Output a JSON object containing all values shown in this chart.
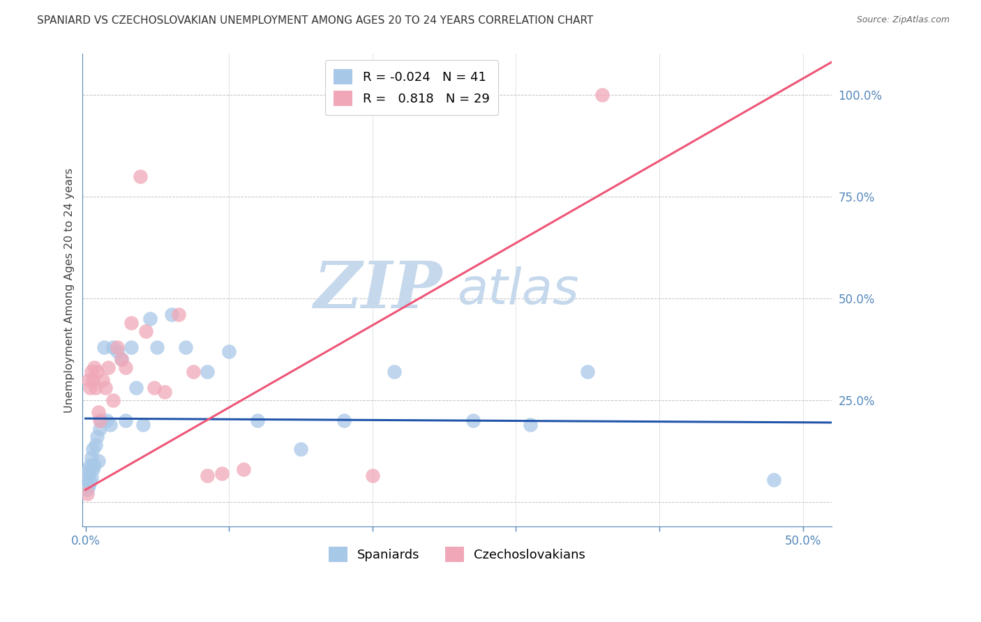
{
  "title": "SPANIARD VS CZECHOSLOVAKIAN UNEMPLOYMENT AMONG AGES 20 TO 24 YEARS CORRELATION CHART",
  "source": "Source: ZipAtlas.com",
  "ylabel": "Unemployment Among Ages 20 to 24 years",
  "xlim": [
    -0.002,
    0.52
  ],
  "ylim": [
    -0.06,
    1.1
  ],
  "yticks": [
    0.0,
    0.25,
    0.5,
    0.75,
    1.0
  ],
  "ytick_labels": [
    "",
    "25.0%",
    "50.0%",
    "75.0%",
    "100.0%"
  ],
  "xticks": [
    0.0,
    0.1,
    0.2,
    0.3,
    0.4,
    0.5
  ],
  "xtick_labels": [
    "0.0%",
    "",
    "",
    "",
    "",
    "50.0%"
  ],
  "title_color": "#333333",
  "source_color": "#666666",
  "axis_color": "#5588bb",
  "tick_color": "#5588bb",
  "grid_color": "#bbbbbb",
  "watermark_ZIP_color": "#c5d8ec",
  "watermark_atlas_color": "#c5d8ec",
  "spaniards_color": "#a8c8e8",
  "czechoslovakians_color": "#f0a8b8",
  "spaniards_line_color": "#2255aa",
  "czechoslovakians_line_color": "#ee5577",
  "legend_R_spaniards": "-0.024",
  "legend_N_spaniards": "41",
  "legend_R_czechoslovakians": "0.818",
  "legend_N_czechoslovakians": "29",
  "spaniards_x": [
    0.001,
    0.001,
    0.002,
    0.002,
    0.002,
    0.003,
    0.003,
    0.004,
    0.004,
    0.005,
    0.005,
    0.006,
    0.007,
    0.008,
    0.009,
    0.01,
    0.011,
    0.013,
    0.015,
    0.017,
    0.019,
    0.022,
    0.025,
    0.028,
    0.032,
    0.035,
    0.04,
    0.045,
    0.05,
    0.06,
    0.07,
    0.085,
    0.1,
    0.12,
    0.15,
    0.18,
    0.215,
    0.27,
    0.31,
    0.35,
    0.48
  ],
  "spaniards_y": [
    0.03,
    0.06,
    0.04,
    0.07,
    0.08,
    0.05,
    0.09,
    0.06,
    0.11,
    0.08,
    0.13,
    0.09,
    0.14,
    0.16,
    0.1,
    0.18,
    0.2,
    0.38,
    0.2,
    0.19,
    0.38,
    0.37,
    0.35,
    0.2,
    0.38,
    0.28,
    0.19,
    0.45,
    0.38,
    0.46,
    0.38,
    0.32,
    0.37,
    0.2,
    0.13,
    0.2,
    0.32,
    0.2,
    0.19,
    0.32,
    0.055
  ],
  "czechoslovakians_x": [
    0.001,
    0.002,
    0.003,
    0.004,
    0.005,
    0.006,
    0.007,
    0.008,
    0.009,
    0.01,
    0.012,
    0.014,
    0.016,
    0.019,
    0.022,
    0.025,
    0.028,
    0.032,
    0.038,
    0.042,
    0.048,
    0.055,
    0.065,
    0.075,
    0.085,
    0.095,
    0.11,
    0.2,
    0.36
  ],
  "czechoslovakians_y": [
    0.02,
    0.3,
    0.28,
    0.32,
    0.3,
    0.33,
    0.28,
    0.32,
    0.22,
    0.2,
    0.3,
    0.28,
    0.33,
    0.25,
    0.38,
    0.35,
    0.33,
    0.44,
    0.8,
    0.42,
    0.28,
    0.27,
    0.46,
    0.32,
    0.065,
    0.07,
    0.08,
    0.065,
    1.0
  ],
  "spaniards_trend_x": [
    0.0,
    0.52
  ],
  "spaniards_trend_y": [
    0.205,
    0.195
  ],
  "czechoslovakians_trend_x": [
    0.0,
    0.52
  ],
  "czechoslovakians_trend_y": [
    0.03,
    1.08
  ]
}
